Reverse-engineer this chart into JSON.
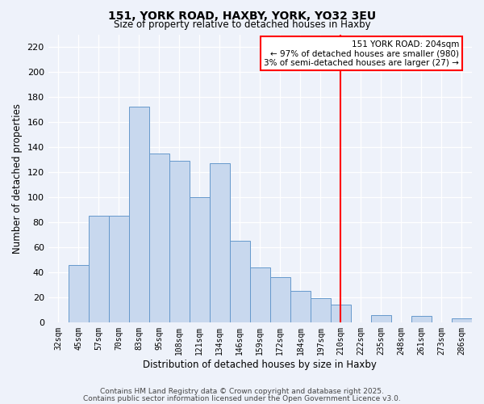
{
  "title": "151, YORK ROAD, HAXBY, YORK, YO32 3EU",
  "subtitle": "Size of property relative to detached houses in Haxby",
  "xlabel": "Distribution of detached houses by size in Haxby",
  "ylabel": "Number of detached properties",
  "bar_labels": [
    "32sqm",
    "45sqm",
    "57sqm",
    "70sqm",
    "83sqm",
    "95sqm",
    "108sqm",
    "121sqm",
    "134sqm",
    "146sqm",
    "159sqm",
    "172sqm",
    "184sqm",
    "197sqm",
    "210sqm",
    "222sqm",
    "235sqm",
    "248sqm",
    "261sqm",
    "273sqm",
    "286sqm"
  ],
  "bar_values": [
    0,
    46,
    85,
    85,
    172,
    135,
    129,
    100,
    127,
    65,
    44,
    36,
    25,
    19,
    14,
    0,
    6,
    0,
    5,
    0,
    3
  ],
  "bar_color": "#c8d8ee",
  "bar_edge_color": "#6699cc",
  "vline_x": 14,
  "vline_color": "red",
  "ylim": [
    0,
    230
  ],
  "yticks": [
    0,
    20,
    40,
    60,
    80,
    100,
    120,
    140,
    160,
    180,
    200,
    220
  ],
  "annotation_title": "151 YORK ROAD: 204sqm",
  "annotation_line1": "← 97% of detached houses are smaller (980)",
  "annotation_line2": "3% of semi-detached houses are larger (27) →",
  "annotation_box_color": "#ffffff",
  "annotation_box_edge": "red",
  "footer1": "Contains HM Land Registry data © Crown copyright and database right 2025.",
  "footer2": "Contains public sector information licensed under the Open Government Licence v3.0.",
  "background_color": "#eef2fa",
  "grid_color": "#ffffff",
  "title_fontsize": 10,
  "subtitle_fontsize": 8.5,
  "xlabel_fontsize": 8.5,
  "ylabel_fontsize": 8.5,
  "tick_fontsize": 7,
  "footer_fontsize": 6.5
}
